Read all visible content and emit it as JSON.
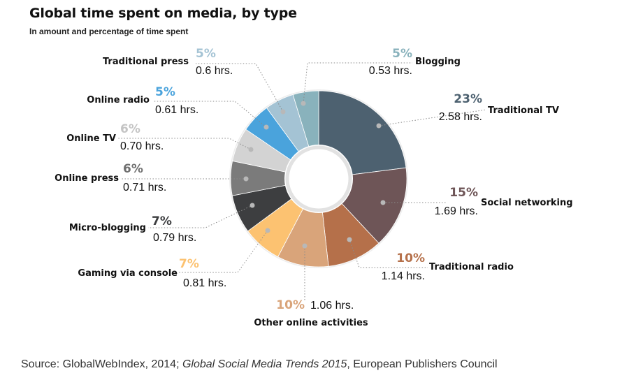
{
  "chart_data": {
    "type": "pie",
    "title": "Global time spent on media, by type",
    "subtitle": "In amount and percentage of time spent",
    "slices": [
      {
        "name": "Traditional TV",
        "pct_label": "23%",
        "hours_label": "2.58 hrs.",
        "hours": 2.58,
        "color": "#4d6170"
      },
      {
        "name": "Social networking",
        "pct_label": "15%",
        "hours_label": "1.69 hrs.",
        "hours": 1.69,
        "color": "#6e5557"
      },
      {
        "name": "Traditional radio",
        "pct_label": "10%",
        "hours_label": "1.14 hrs.",
        "hours": 1.14,
        "color": "#b5704a"
      },
      {
        "name": "Other online activities",
        "pct_label": "10%",
        "hours_label": "1.06 hrs.",
        "hours": 1.06,
        "color": "#d9a47a"
      },
      {
        "name": "Gaming via console",
        "pct_label": "7%",
        "hours_label": "0.81 hrs.",
        "hours": 0.81,
        "color": "#fcc271"
      },
      {
        "name": "Micro-blogging",
        "pct_label": "7%",
        "hours_label": "0.79 hrs.",
        "hours": 0.79,
        "color": "#3d3e40"
      },
      {
        "name": "Online press",
        "pct_label": "6%",
        "hours_label": "0.71 hrs.",
        "hours": 0.71,
        "color": "#7b7b7b"
      },
      {
        "name": "Online TV",
        "pct_label": "6%",
        "hours_label": "0.70 hrs.",
        "hours": 0.7,
        "color": "#d3d3d3"
      },
      {
        "name": "Online radio",
        "pct_label": "5%",
        "hours_label": "0.61 hrs.",
        "hours": 0.61,
        "color": "#4aa3dc"
      },
      {
        "name": "Traditional press",
        "pct_label": "5%",
        "hours_label": "0.6 hrs.",
        "hours": 0.6,
        "color": "#a4c3d4"
      },
      {
        "name": "Blogging",
        "pct_label": "5%",
        "hours_label": "0.53 hrs.",
        "hours": 0.53,
        "color": "#89b2bc"
      }
    ]
  },
  "source": {
    "prefix": "Source: GlobalWebIndex, 2014; ",
    "italic": "Global Social Media Trends 2015",
    "suffix": ", European Publishers Council"
  }
}
